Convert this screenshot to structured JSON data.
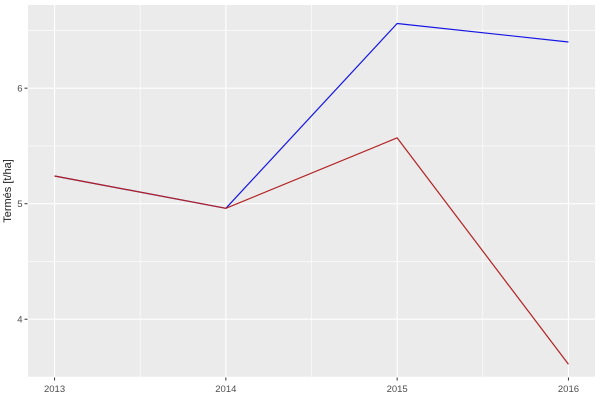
{
  "chart_data": {
    "type": "line",
    "x": [
      2013,
      2014,
      2015,
      2016
    ],
    "series": [
      {
        "name": "series-blue",
        "color": "#1515e6",
        "values": [
          5.24,
          4.96,
          6.56,
          6.4
        ]
      },
      {
        "name": "series-red",
        "color": "#b22222",
        "values": [
          5.24,
          4.96,
          5.57,
          3.61
        ]
      }
    ],
    "title": "",
    "xlabel": "",
    "ylabel": "Termés [t/ha]",
    "xlim": [
      2012.845,
      2016.155
    ],
    "ylim": [
      3.5,
      6.72
    ],
    "xticks": {
      "values": [
        2013,
        2014,
        2015,
        2016
      ],
      "labels": [
        "2013",
        "2014",
        "2015",
        "2016"
      ]
    },
    "yticks": {
      "values": [
        4,
        5,
        6
      ],
      "labels": [
        "4",
        "5",
        "6"
      ]
    },
    "xticks_minor": [
      2013.5,
      2014.5,
      2015.5
    ],
    "yticks_minor": [
      3.5,
      4.5,
      5.5,
      6.5
    ],
    "grid": true,
    "legend": "none",
    "style": {
      "panel_bg": "#ebebeb",
      "outer_bg": "#ffffff",
      "grid_color": "#ffffff",
      "tick_color": "#333333",
      "tick_label_color": "#4d4d4d",
      "axis_title_color": "#1a1a1a"
    }
  }
}
